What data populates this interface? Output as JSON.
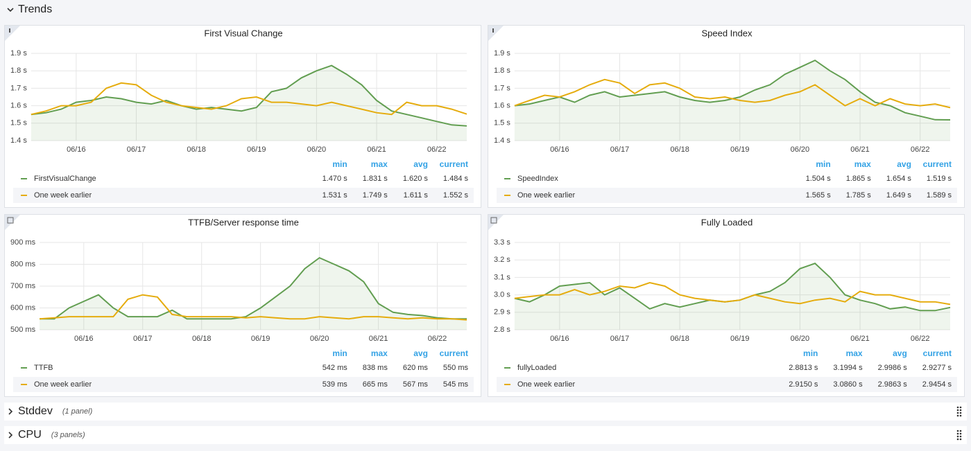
{
  "rows": [
    {
      "title": "Trends"
    },
    {
      "title": "Stddev",
      "note": "(1 panel)"
    },
    {
      "title": "CPU",
      "note": "(3 panels)"
    }
  ],
  "legend_columns": [
    "min",
    "max",
    "avg",
    "current"
  ],
  "chart_data": [
    {
      "type": "line",
      "title": "First Visual Change",
      "categories": [
        null,
        null,
        null,
        "06/16",
        null,
        null,
        null,
        "06/17",
        null,
        null,
        null,
        "06/18",
        null,
        null,
        null,
        "06/19",
        null,
        null,
        null,
        "06/20",
        null,
        null,
        null,
        "06/21",
        null,
        null,
        null,
        "06/22",
        null,
        null
      ],
      "series": [
        {
          "name": "FirstVisualChange",
          "color": "#629e51",
          "fill": true,
          "stats": [
            "1.470 s",
            "1.831 s",
            "1.620 s",
            "1.484 s"
          ],
          "values": [
            1.55,
            1.56,
            1.58,
            1.62,
            1.63,
            1.65,
            1.64,
            1.62,
            1.61,
            1.63,
            1.6,
            1.58,
            1.59,
            1.58,
            1.57,
            1.59,
            1.68,
            1.7,
            1.76,
            1.8,
            1.83,
            1.78,
            1.72,
            1.63,
            1.57,
            1.55,
            1.53,
            1.51,
            1.49,
            1.484
          ]
        },
        {
          "name": "One week earlier",
          "color": "#e5ac0e",
          "fill": false,
          "stats": [
            "1.531 s",
            "1.749 s",
            "1.611 s",
            "1.552 s"
          ],
          "values": [
            1.55,
            1.57,
            1.6,
            1.6,
            1.62,
            1.7,
            1.73,
            1.72,
            1.66,
            1.62,
            1.6,
            1.59,
            1.58,
            1.6,
            1.64,
            1.65,
            1.62,
            1.62,
            1.61,
            1.6,
            1.62,
            1.6,
            1.58,
            1.56,
            1.55,
            1.62,
            1.6,
            1.6,
            1.58,
            1.552
          ]
        }
      ],
      "ylim": [
        1.4,
        1.9
      ],
      "yticks": [
        {
          "value": 1.4,
          "label": "1.4 s"
        },
        {
          "value": 1.5,
          "label": "1.5 s"
        },
        {
          "value": 1.6,
          "label": "1.6 s"
        },
        {
          "value": 1.7,
          "label": "1.7 s"
        },
        {
          "value": 1.8,
          "label": "1.8 s"
        },
        {
          "value": 1.9,
          "label": "1.9 s"
        }
      ],
      "grid": true
    },
    {
      "type": "line",
      "title": "Speed Index",
      "categories": [
        null,
        null,
        null,
        "06/16",
        null,
        null,
        null,
        "06/17",
        null,
        null,
        null,
        "06/18",
        null,
        null,
        null,
        "06/19",
        null,
        null,
        null,
        "06/20",
        null,
        null,
        null,
        "06/21",
        null,
        null,
        null,
        "06/22",
        null,
        null
      ],
      "series": [
        {
          "name": "SpeedIndex",
          "color": "#629e51",
          "fill": true,
          "stats": [
            "1.504 s",
            "1.865 s",
            "1.654 s",
            "1.519 s"
          ],
          "values": [
            1.6,
            1.61,
            1.63,
            1.65,
            1.62,
            1.66,
            1.68,
            1.65,
            1.66,
            1.67,
            1.68,
            1.65,
            1.63,
            1.62,
            1.63,
            1.65,
            1.69,
            1.72,
            1.78,
            1.82,
            1.86,
            1.8,
            1.75,
            1.68,
            1.62,
            1.6,
            1.56,
            1.54,
            1.52,
            1.519
          ]
        },
        {
          "name": "One week earlier",
          "color": "#e5ac0e",
          "fill": false,
          "stats": [
            "1.565 s",
            "1.785 s",
            "1.649 s",
            "1.589 s"
          ],
          "values": [
            1.6,
            1.63,
            1.66,
            1.65,
            1.68,
            1.72,
            1.75,
            1.73,
            1.67,
            1.72,
            1.73,
            1.7,
            1.65,
            1.64,
            1.65,
            1.63,
            1.62,
            1.63,
            1.66,
            1.68,
            1.72,
            1.66,
            1.6,
            1.64,
            1.6,
            1.64,
            1.61,
            1.6,
            1.61,
            1.589
          ]
        }
      ],
      "ylim": [
        1.4,
        1.9
      ],
      "yticks": [
        {
          "value": 1.4,
          "label": "1.4 s"
        },
        {
          "value": 1.5,
          "label": "1.5 s"
        },
        {
          "value": 1.6,
          "label": "1.6 s"
        },
        {
          "value": 1.7,
          "label": "1.7 s"
        },
        {
          "value": 1.8,
          "label": "1.8 s"
        },
        {
          "value": 1.9,
          "label": "1.9 s"
        }
      ],
      "grid": true
    },
    {
      "type": "line",
      "title": "TTFB/Server response time",
      "categories": [
        null,
        null,
        null,
        "06/16",
        null,
        null,
        null,
        "06/17",
        null,
        null,
        null,
        "06/18",
        null,
        null,
        null,
        "06/19",
        null,
        null,
        null,
        "06/20",
        null,
        null,
        null,
        "06/21",
        null,
        null,
        null,
        "06/22",
        null,
        null
      ],
      "series": [
        {
          "name": "TTFB",
          "color": "#629e51",
          "fill": true,
          "stats": [
            "542 ms",
            "838 ms",
            "620 ms",
            "550 ms"
          ],
          "values": [
            550,
            550,
            600,
            630,
            660,
            600,
            560,
            560,
            560,
            590,
            550,
            550,
            550,
            550,
            560,
            600,
            650,
            700,
            780,
            830,
            800,
            770,
            720,
            620,
            580,
            570,
            565,
            555,
            550,
            550
          ]
        },
        {
          "name": "One week earlier",
          "color": "#e5ac0e",
          "fill": false,
          "stats": [
            "539 ms",
            "665 ms",
            "567 ms",
            "545 ms"
          ],
          "values": [
            550,
            555,
            560,
            560,
            560,
            560,
            640,
            660,
            650,
            570,
            560,
            560,
            560,
            560,
            555,
            560,
            555,
            550,
            550,
            560,
            555,
            550,
            560,
            560,
            555,
            550,
            555,
            550,
            550,
            545
          ]
        }
      ],
      "ylim": [
        500,
        900
      ],
      "yticks": [
        {
          "value": 500,
          "label": "500 ms"
        },
        {
          "value": 600,
          "label": "600 ms"
        },
        {
          "value": 700,
          "label": "700 ms"
        },
        {
          "value": 800,
          "label": "800 ms"
        },
        {
          "value": 900,
          "label": "900 ms"
        }
      ],
      "grid": true
    },
    {
      "type": "line",
      "title": "Fully Loaded",
      "categories": [
        null,
        null,
        null,
        "06/16",
        null,
        null,
        null,
        "06/17",
        null,
        null,
        null,
        "06/18",
        null,
        null,
        null,
        "06/19",
        null,
        null,
        null,
        "06/20",
        null,
        null,
        null,
        "06/21",
        null,
        null,
        null,
        "06/22",
        null,
        null
      ],
      "series": [
        {
          "name": "fullyLoaded",
          "color": "#629e51",
          "fill": true,
          "stats": [
            "2.8813 s",
            "3.1994 s",
            "2.9986 s",
            "2.9277 s"
          ],
          "values": [
            2.98,
            2.96,
            3.0,
            3.05,
            3.06,
            3.07,
            3.0,
            3.04,
            2.98,
            2.92,
            2.95,
            2.93,
            2.95,
            2.97,
            2.96,
            2.97,
            3.0,
            3.02,
            3.07,
            3.15,
            3.18,
            3.1,
            3.0,
            2.97,
            2.95,
            2.92,
            2.93,
            2.91,
            2.91,
            2.9277
          ]
        },
        {
          "name": "One week earlier",
          "color": "#e5ac0e",
          "fill": false,
          "stats": [
            "2.9150 s",
            "3.0860 s",
            "2.9863 s",
            "2.9454 s"
          ],
          "values": [
            2.98,
            2.99,
            3.0,
            3.0,
            3.03,
            3.0,
            3.02,
            3.05,
            3.04,
            3.07,
            3.05,
            3.0,
            2.98,
            2.97,
            2.96,
            2.97,
            3.0,
            2.98,
            2.96,
            2.95,
            2.97,
            2.98,
            2.96,
            3.02,
            3.0,
            3.0,
            2.98,
            2.96,
            2.96,
            2.9454
          ]
        }
      ],
      "ylim": [
        2.8,
        3.3
      ],
      "yticks": [
        {
          "value": 2.8,
          "label": "2.8 s"
        },
        {
          "value": 2.9,
          "label": "2.9 s"
        },
        {
          "value": 3.0,
          "label": "3.0 s"
        },
        {
          "value": 3.1,
          "label": "3.1 s"
        },
        {
          "value": 3.2,
          "label": "3.2 s"
        },
        {
          "value": 3.3,
          "label": "3.3 s"
        }
      ],
      "grid": true
    }
  ]
}
